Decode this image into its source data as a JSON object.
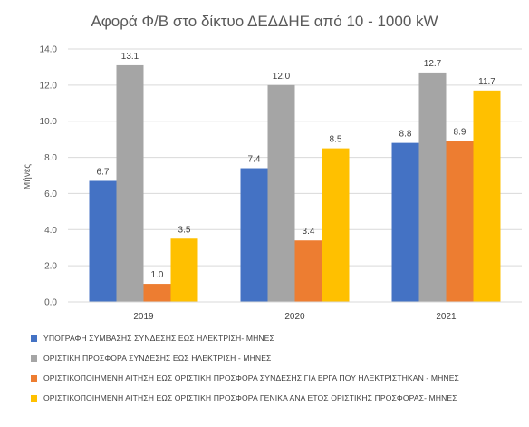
{
  "chart_data": {
    "type": "bar",
    "title": "Αφορά Φ/Β στο δίκτυο ΔΕΔΔΗΕ από 10 - 1000 kW",
    "xlabel": "",
    "ylabel": "Μήνες",
    "ylim": [
      0,
      14
    ],
    "yticks": [
      "0.0",
      "2.0",
      "4.0",
      "6.0",
      "8.0",
      "10.0",
      "12.0",
      "14.0"
    ],
    "grid": true,
    "legend_position": "bottom",
    "categories": [
      "2019",
      "2020",
      "2021"
    ],
    "series": [
      {
        "name": "ΥΠΟΓΡΑΦΗ ΣΥΜΒΑΣΗΣ ΣΥΝΔΕΣΗΣ ΕΩΣ ΗΛΕΚΤΡΙΣΗ- ΜΗΝΕΣ",
        "values": [
          6.7,
          7.4,
          8.8
        ],
        "labels": [
          "6.7",
          "7.4",
          "8.8"
        ],
        "color": "#4472C4"
      },
      {
        "name": "ΟΡΙΣΤΙΚΗ ΠΡΟΣΦΟΡΑ ΣΥΝΔΕΣΗΣ ΕΩΣ ΗΛΕΚΤΡΙΣΗ - ΜΗΝΕΣ",
        "values": [
          13.1,
          12.0,
          12.7
        ],
        "labels": [
          "13.1",
          "12.0",
          "12.7"
        ],
        "color": "#A5A5A5"
      },
      {
        "name": "ΟΡΙΣΤΙΚΟΠΟΙΗΜΕΝΗ ΑΙΤΗΣΗ ΕΩΣ ΟΡΙΣΤΙΚΗ ΠΡΟΣΦΟΡΑ ΣΥΝΔΕΣΗΣ ΓΙΑ ΕΡΓΑ ΠΟΥ ΗΛΕΚΤΡΙΣΤΗΚΑΝ - ΜΗΝΕΣ",
        "values": [
          1.0,
          3.4,
          8.9
        ],
        "labels": [
          "1.0",
          "3.4",
          "8.9"
        ],
        "color": "#ED7D31"
      },
      {
        "name": "ΟΡΙΣΤΙΚΟΠΟΙΗΜΕΝΗ ΑΙΤΗΣΗ ΕΩΣ ΟΡΙΣΤΙΚΗ ΠΡΟΣΦΟΡΑ ΓΕΝΙΚΑ ΑΝΑ ΕΤΟΣ ΟΡΙΣΤΙΚΗΣ ΠΡΟΣΦΟΡΑΣ- ΜΗΝΕΣ",
        "values": [
          3.5,
          8.5,
          11.7
        ],
        "labels": [
          "3.5",
          "8.5",
          "11.7"
        ],
        "color": "#FFC000"
      }
    ]
  }
}
